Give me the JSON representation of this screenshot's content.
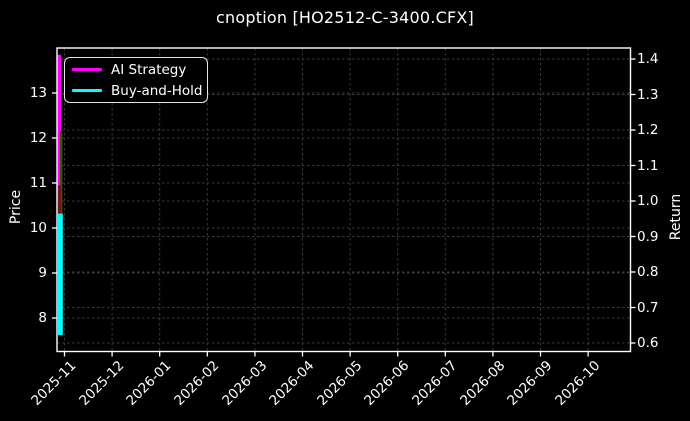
{
  "figure": {
    "background": "#000000",
    "text_color": "#ffffff",
    "spine_color": "#ffffff"
  },
  "chart_data": {
    "type": "line",
    "title": "cnoption [HO2512-C-3400.CFX]",
    "ylabel": "Price",
    "ylabel_right": "Return",
    "x_tick_labels": [
      "2025-11",
      "2025-12",
      "2026-01",
      "2026-02",
      "2026-03",
      "2026-04",
      "2026-05",
      "2026-06",
      "2026-07",
      "2026-08",
      "2026-09",
      "2026-10"
    ],
    "y_ticks_price": [
      8,
      9,
      10,
      11,
      12,
      13
    ],
    "y_ticks_return": [
      0.6,
      0.7,
      0.8,
      0.9,
      1.0,
      1.1,
      1.2,
      1.3,
      1.4
    ],
    "price_axis_range": [
      7.26,
      14.0
    ],
    "return_axis_range": [
      0.58,
      1.43
    ],
    "grid": {
      "on": true,
      "style": "dashed",
      "color": "#3a3a3a"
    },
    "legend": {
      "position": "upper left",
      "items": [
        {
          "label": "AI Strategy",
          "color": "#ff00ff"
        },
        {
          "label": "Buy-and-Hold",
          "color": "#00ffff"
        }
      ]
    },
    "series": [
      {
        "name": "AI Strategy",
        "color": "#ff00ff",
        "axis": "price",
        "x": "2025-11",
        "price_high": 13.85,
        "price_low": 10.65
      },
      {
        "name": "Buy-and-Hold",
        "color": "#00ffff",
        "axis": "price",
        "x": "2025-11",
        "price_high": 10.32,
        "price_low": 7.62
      }
    ],
    "overlap_segments": [
      {
        "color": "#6e1818",
        "price_high": 10.95,
        "price_low": 10.25
      },
      {
        "color": "#40500e",
        "price_high": 12.15,
        "price_low": 10.25
      }
    ]
  }
}
